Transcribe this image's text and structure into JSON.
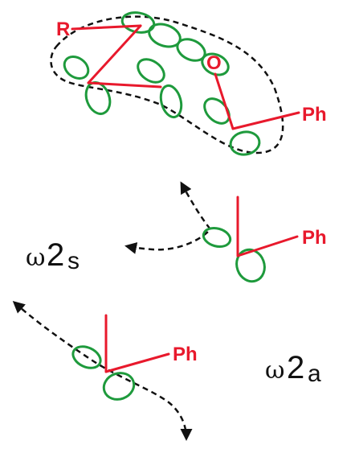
{
  "colors": {
    "bond": "#e8192c",
    "orbital": "#1e9a3c",
    "dashed_path": "#111111",
    "text": "#111111"
  },
  "top_structure": {
    "label_r": "R",
    "label_o": "O",
    "label_ph": "Ph"
  },
  "mode_s": {
    "omega": "ω",
    "two": "2",
    "sub": "s",
    "label_ph": "Ph"
  },
  "mode_a": {
    "omega": "ω",
    "two": "2",
    "sub": "a",
    "label_ph": "Ph"
  }
}
